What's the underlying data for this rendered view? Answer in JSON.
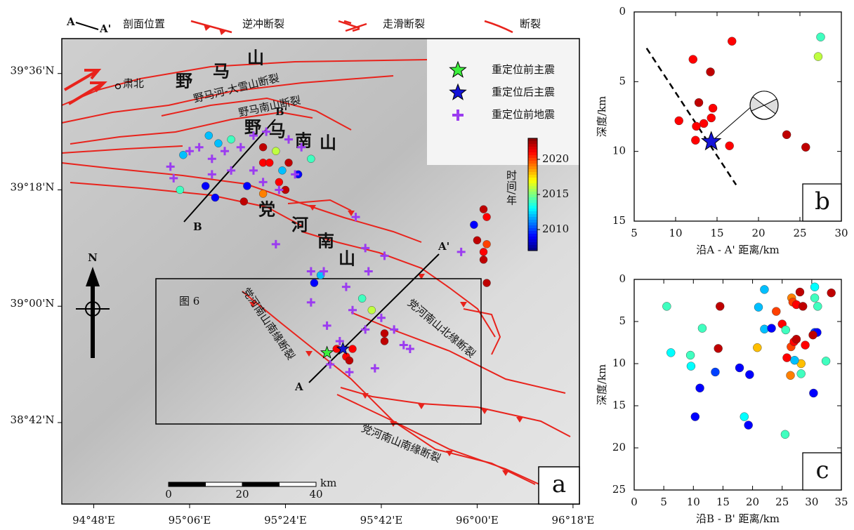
{
  "legend": {
    "section_a": "A",
    "section_b": "A'",
    "section": "剖面位置",
    "thrust": "逆冲断裂",
    "strike_slip": "走滑断裂",
    "fault": "断裂"
  },
  "map": {
    "panel": "a",
    "lonlim": [
      94.7,
      96.32
    ],
    "latlim": [
      38.49,
      39.69
    ],
    "lonticks": [
      {
        "value": 94.8,
        "label": "94°48'E"
      },
      {
        "value": 95.1,
        "label": "95°06'E"
      },
      {
        "value": 95.4,
        "label": "95°24'E"
      },
      {
        "value": 95.7,
        "label": "95°42'E"
      },
      {
        "value": 96.0,
        "label": "96°00'E"
      },
      {
        "value": 96.3,
        "label": "96°18'E"
      }
    ],
    "latticks": [
      {
        "value": 39.6,
        "label": "39°36'N"
      },
      {
        "value": 39.3,
        "label": "39°18'N"
      },
      {
        "value": 39.0,
        "label": "39°00'N"
      },
      {
        "value": 38.7,
        "label": "38°42'N"
      }
    ],
    "inset_legend": {
      "before_mainshock": "重定位前主震",
      "after_mainshock": "重定位后主震",
      "initial_events": "重定位前地震"
    },
    "colorbar": {
      "label": "时间/年",
      "clim": [
        2007,
        2023
      ],
      "ticks": [
        2010,
        2015,
        2020
      ]
    },
    "events": {
      "lon": [
        95.08,
        95.16,
        95.19,
        95.23,
        95.33,
        95.33,
        95.35,
        95.37,
        95.39,
        95.44,
        95.41,
        95.15,
        95.28,
        95.33,
        95.27,
        95.07,
        95.18,
        95.38,
        95.4,
        95.48,
        96.02,
        95.99,
        96.03,
        96.0,
        96.03,
        96.02,
        96.02,
        96.03,
        95.49,
        95.51,
        95.64,
        95.67,
        95.71,
        95.71,
        95.56,
        95.59,
        95.61,
        95.6
      ],
      "lat": [
        39.39,
        39.44,
        39.42,
        39.43,
        39.41,
        39.37,
        39.37,
        39.4,
        39.35,
        39.34,
        39.37,
        39.31,
        39.31,
        39.29,
        39.27,
        39.3,
        39.28,
        39.32,
        39.3,
        39.38,
        39.25,
        39.21,
        39.23,
        39.17,
        39.16,
        39.14,
        39.12,
        39.06,
        39.06,
        39.08,
        39.02,
        38.99,
        38.93,
        38.91,
        38.89,
        38.87,
        38.89,
        38.86
      ],
      "year": [
        2012,
        2012,
        2012,
        2014,
        2022,
        2021,
        2021,
        2016,
        2012,
        2009,
        2022,
        2009,
        2009,
        2019,
        2022,
        2014,
        2009,
        2021,
        2022,
        2014,
        2022,
        2009,
        2021,
        2022,
        2020,
        2021,
        2022,
        2022,
        2009,
        2012,
        2014,
        2016,
        2022,
        2022,
        2021,
        2021,
        2021,
        2022
      ]
    },
    "initial_events": {
      "lon": [
        95.04,
        95.1,
        95.13,
        95.17,
        95.21,
        95.26,
        95.3,
        95.34,
        95.41,
        95.45,
        95.17,
        95.23,
        95.3,
        95.33,
        95.38,
        95.43,
        95.05,
        95.62,
        95.37,
        95.48,
        95.52,
        95.65,
        95.71,
        95.59,
        95.66,
        95.48,
        95.61,
        95.53,
        95.7,
        95.77,
        95.74,
        95.79,
        95.68,
        95.95,
        95.6,
        95.54,
        95.65,
        95.57
      ],
      "lat": [
        39.36,
        39.4,
        39.41,
        39.38,
        39.4,
        39.41,
        39.44,
        39.45,
        39.43,
        39.41,
        39.34,
        39.35,
        39.35,
        39.32,
        39.3,
        39.34,
        39.33,
        39.23,
        39.16,
        39.09,
        39.09,
        39.15,
        39.13,
        39.05,
        39.09,
        39.01,
        38.99,
        38.95,
        38.97,
        38.9,
        38.94,
        38.89,
        38.84,
        39.14,
        38.83,
        38.85,
        38.94,
        38.91
      ]
    },
    "mainshock_before": {
      "lon": 95.53,
      "lat": 38.88
    },
    "mainshock_after": {
      "lon": 95.58,
      "lat": 38.89
    },
    "labels": {
      "subei": "肃北",
      "fault1": "野马河-大雪山断裂",
      "fault2": "野马南山断裂",
      "yamashan": [
        "野",
        "马",
        "山"
      ],
      "yamanan": [
        "野",
        "马",
        "南",
        "山"
      ],
      "danghe": [
        "党",
        "河",
        "南",
        "山"
      ],
      "figure6": "图 6",
      "fault3": "党河南山南缘断裂",
      "fault4": "党河南山北缘断裂",
      "fault5": "党河南山南缘断裂",
      "b": "B",
      "b2": "B'",
      "a": "A",
      "a2": "A'",
      "north": "N"
    },
    "scale_bar": {
      "ticks": [
        0,
        20,
        40
      ],
      "unit": "km"
    }
  },
  "chart_data": [
    {
      "type": "scatter",
      "panel": "b",
      "x_label": "沿A - A' 距离/km",
      "y_label": "深度/km",
      "xlim": [
        5,
        30
      ],
      "ylim": [
        0,
        15
      ],
      "y_inverted": true,
      "xticks": [
        5,
        10,
        15,
        20,
        25,
        30
      ],
      "yticks": [
        0,
        5,
        10,
        15
      ],
      "x": [
        27.5,
        27.2,
        16.8,
        12.1,
        14.2,
        12.8,
        14.5,
        10.4,
        13.4,
        12.5,
        14.3,
        12.4,
        16.5,
        23.4,
        25.7
      ],
      "y": [
        1.8,
        3.2,
        2.1,
        3.4,
        4.3,
        6.5,
        6.9,
        7.8,
        8.0,
        8.2,
        7.6,
        9.2,
        9.6,
        8.8,
        9.7
      ],
      "year": [
        2014,
        2016,
        2021,
        2021,
        2022,
        2022,
        2021,
        2021,
        2021,
        2021,
        2021,
        2021,
        2021,
        2022,
        2022
      ],
      "mainshock_x": 14.3,
      "mainshock_y": 9.3
    },
    {
      "type": "scatter",
      "panel": "c",
      "x_label": "沿B - B' 距离/km",
      "y_label": "深度/km",
      "xlim": [
        0,
        35
      ],
      "ylim": [
        0,
        25
      ],
      "y_inverted": true,
      "xticks": [
        0,
        5,
        10,
        15,
        20,
        25,
        30,
        35
      ],
      "yticks": [
        0,
        5,
        10,
        15,
        20,
        25
      ],
      "x": [
        5.5,
        6.2,
        14.5,
        11.5,
        9.5,
        9.6,
        11.1,
        10.3,
        14.2,
        13.7,
        17.8,
        19.5,
        18.6,
        19.3,
        21.0,
        22.0,
        22.0,
        23.2,
        20.8,
        24.0,
        25.0,
        25.6,
        26.6,
        26.8,
        27.4,
        28.0,
        28.5,
        25.8,
        26.5,
        27.0,
        26.4,
        27.4,
        28.2,
        28.2,
        28.9,
        30.5,
        30.5,
        31.0,
        30.5,
        30.9,
        30.2,
        30.3,
        32.4,
        33.3,
        27.1,
        25.5
      ],
      "y": [
        3.2,
        8.7,
        3.2,
        5.8,
        9.0,
        10.3,
        12.9,
        16.3,
        8.2,
        11.0,
        10.5,
        11.3,
        16.3,
        17.3,
        3.3,
        1.2,
        5.9,
        5.8,
        8.1,
        3.8,
        5.3,
        6.0,
        2.2,
        2.7,
        3.0,
        1.5,
        3.2,
        9.3,
        8.0,
        7.4,
        11.4,
        7.1,
        10.0,
        11.2,
        7.8,
        0.9,
        2.2,
        3.2,
        6.3,
        6.3,
        6.6,
        13.5,
        9.7,
        1.6,
        9.6,
        18.4
      ],
      "year": [
        2014,
        2013,
        2022,
        2014,
        2014,
        2013,
        2009,
        2009,
        2022,
        2010,
        2009,
        2009,
        2013,
        2009,
        2012,
        2012,
        2012,
        2009,
        2018,
        2020,
        2021,
        2014,
        2019,
        2020,
        2021,
        2022,
        2022,
        2021,
        2020,
        2021,
        2019,
        2022,
        2018,
        2014,
        2021,
        2013,
        2014,
        2014,
        2010,
        2009,
        2022,
        2009,
        2014,
        2022,
        2012,
        2014
      ]
    }
  ]
}
